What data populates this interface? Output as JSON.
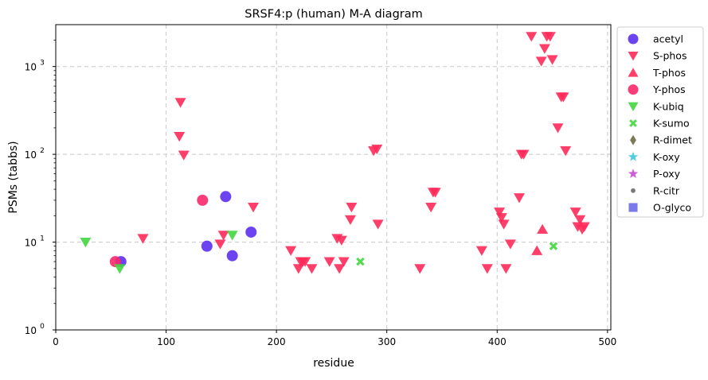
{
  "chart_data": {
    "type": "scatter",
    "title": "SRSF4:p (human) M-A diagram",
    "xlabel": "residue",
    "ylabel": "PSMs (tabbs)",
    "xlim": [
      0,
      503
    ],
    "ylim": [
      1,
      3000
    ],
    "yscale": "log",
    "grid": true,
    "legend_position": "outside-right",
    "x_ticks": [
      {
        "value": 0,
        "label": "0"
      },
      {
        "value": 100,
        "label": "100"
      },
      {
        "value": 200,
        "label": "200"
      },
      {
        "value": 300,
        "label": "300"
      },
      {
        "value": 400,
        "label": "400"
      },
      {
        "value": 500,
        "label": "500"
      }
    ],
    "y_ticks": [
      {
        "value": 1,
        "base": "10",
        "exp": "0"
      },
      {
        "value": 10,
        "base": "10",
        "exp": "1"
      },
      {
        "value": 100,
        "base": "10",
        "exp": "2"
      },
      {
        "value": 1000,
        "base": "10",
        "exp": "3"
      }
    ],
    "series": [
      {
        "name": "acetyl",
        "marker": "circle",
        "color": "#5b2ff0",
        "points": [
          [
            59,
            6
          ],
          [
            137,
            9
          ],
          [
            154,
            33
          ],
          [
            160,
            7
          ],
          [
            177,
            13
          ]
        ]
      },
      {
        "name": "S-phos",
        "marker": "triangle-down",
        "color": "#ff2a5a",
        "points": [
          [
            79,
            11
          ],
          [
            112,
            160
          ],
          [
            113,
            390
          ],
          [
            116,
            98
          ],
          [
            149,
            9.5
          ],
          [
            152,
            12
          ],
          [
            179,
            25
          ],
          [
            213,
            8
          ],
          [
            220,
            5
          ],
          [
            222,
            6
          ],
          [
            224,
            6
          ],
          [
            226,
            6
          ],
          [
            232,
            5
          ],
          [
            248,
            6
          ],
          [
            255,
            11
          ],
          [
            257,
            5
          ],
          [
            259,
            10.5
          ],
          [
            261,
            6
          ],
          [
            267,
            18
          ],
          [
            268,
            25
          ],
          [
            288,
            110
          ],
          [
            291,
            115
          ],
          [
            292,
            16
          ],
          [
            330,
            5
          ],
          [
            340,
            25
          ],
          [
            342,
            37
          ],
          [
            344,
            37
          ],
          [
            386,
            8
          ],
          [
            391,
            5
          ],
          [
            402,
            22
          ],
          [
            404,
            19
          ],
          [
            406,
            16
          ],
          [
            408,
            5
          ],
          [
            412,
            9.5
          ],
          [
            420,
            32
          ],
          [
            422,
            100
          ],
          [
            424,
            100
          ],
          [
            431,
            2200
          ],
          [
            440,
            1150
          ],
          [
            443,
            1600
          ],
          [
            445,
            2200
          ],
          [
            448,
            2200
          ],
          [
            450,
            1200
          ],
          [
            455,
            200
          ],
          [
            458,
            450
          ],
          [
            460,
            450
          ],
          [
            462,
            110
          ],
          [
            471,
            22
          ],
          [
            473,
            15
          ],
          [
            475,
            18
          ],
          [
            477,
            14
          ],
          [
            479,
            15
          ]
        ]
      },
      {
        "name": "T-phos",
        "marker": "triangle-up",
        "color": "#ff2a5a",
        "points": [
          [
            436,
            8
          ],
          [
            441,
            14
          ]
        ]
      },
      {
        "name": "Y-phos",
        "marker": "circle",
        "color": "#f7286a",
        "points": [
          [
            54,
            6
          ],
          [
            133,
            30
          ]
        ]
      },
      {
        "name": "K-ubiq",
        "marker": "triangle-down",
        "color": "#45d640",
        "points": [
          [
            27,
            10
          ],
          [
            58,
            5
          ],
          [
            160,
            12
          ]
        ]
      },
      {
        "name": "K-sumo",
        "marker": "x",
        "color": "#45d640",
        "points": [
          [
            276,
            6
          ],
          [
            451,
            9
          ]
        ]
      },
      {
        "name": "R-dimet",
        "marker": "diamond",
        "color": "#6b6b45",
        "points": []
      },
      {
        "name": "K-oxy",
        "marker": "star",
        "color": "#3ec9d6",
        "points": []
      },
      {
        "name": "P-oxy",
        "marker": "star",
        "color": "#c94bd6",
        "points": []
      },
      {
        "name": "R-citr",
        "marker": "dot",
        "color": "#6b6b6b",
        "points": []
      },
      {
        "name": "O-glyco",
        "marker": "square",
        "color": "#6b6be8",
        "points": []
      }
    ]
  }
}
